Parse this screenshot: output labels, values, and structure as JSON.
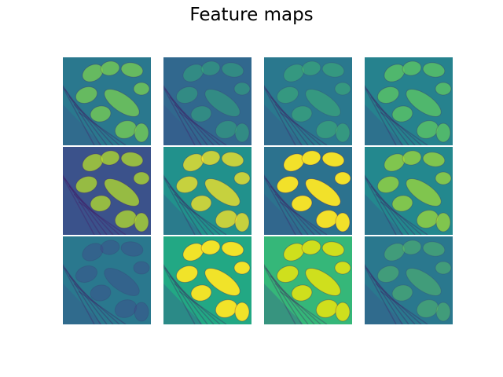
{
  "figure": {
    "title": "Feature maps",
    "colormap": "viridis",
    "colors": {
      "viridis_dark": "#440154",
      "viridis_blue": "#3b528b",
      "viridis_teal": "#21918c",
      "viridis_green": "#5ec962",
      "viridis_yellow": "#fde725"
    },
    "grid": {
      "rows": 3,
      "cols": 4
    },
    "maps": [
      {
        "index": 1,
        "intensity": "medium",
        "base": "#2a788e",
        "hi": "#7ad151"
      },
      {
        "index": 2,
        "intensity": "low",
        "base": "#31688e",
        "hi": "#35b779"
      },
      {
        "index": 3,
        "intensity": "low",
        "base": "#2a788e",
        "hi": "#44bf70"
      },
      {
        "index": 4,
        "intensity": "medium",
        "base": "#26828e",
        "hi": "#5ec962"
      },
      {
        "index": 5,
        "intensity": "dark",
        "base": "#3b528b",
        "hi": "#b5de2b"
      },
      {
        "index": 6,
        "intensity": "medium",
        "base": "#21918c",
        "hi": "#fde725"
      },
      {
        "index": 7,
        "intensity": "high",
        "base": "#2c728e",
        "hi": "#fde725"
      },
      {
        "index": 8,
        "intensity": "medium",
        "base": "#23888e",
        "hi": "#a0da39"
      },
      {
        "index": 9,
        "intensity": "low",
        "base": "#2a788e",
        "hi": "#3f4a8a"
      },
      {
        "index": 10,
        "intensity": "high",
        "base": "#22a884",
        "hi": "#fde725"
      },
      {
        "index": 11,
        "intensity": "high",
        "base": "#35b779",
        "hi": "#d8e219"
      },
      {
        "index": 12,
        "intensity": "low",
        "base": "#2a788e",
        "hi": "#5ec962"
      }
    ]
  }
}
